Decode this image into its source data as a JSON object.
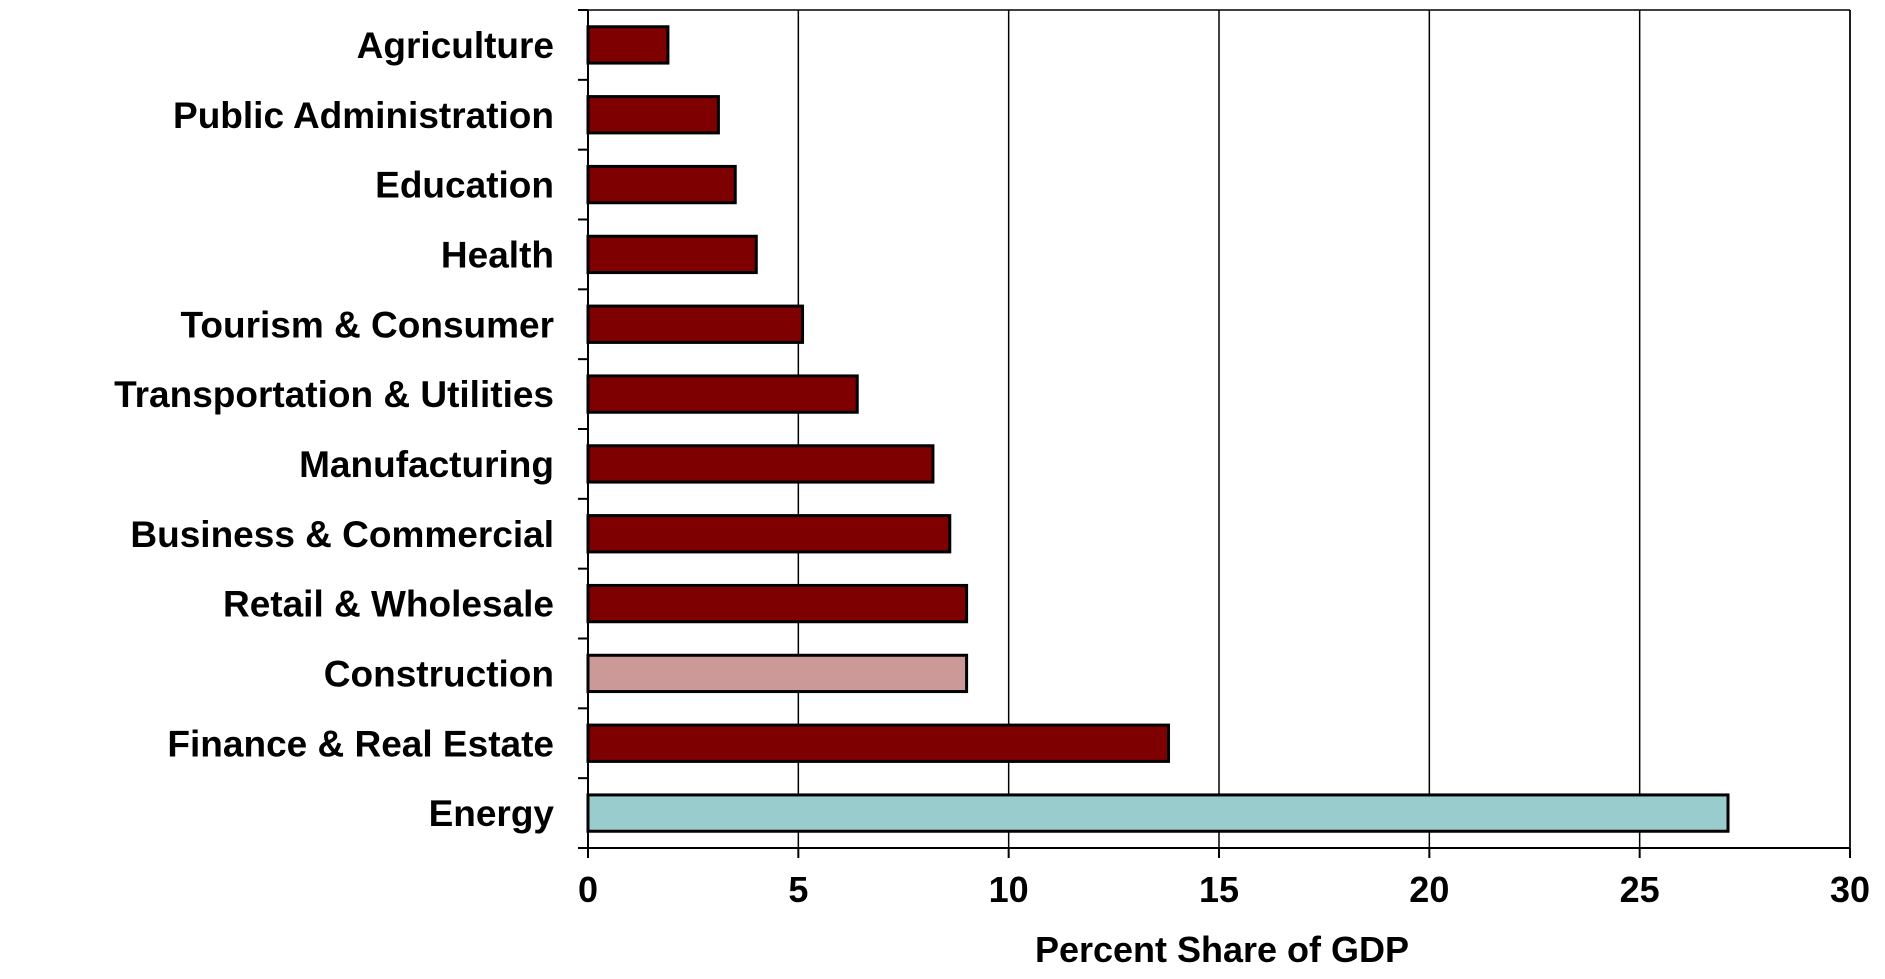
{
  "chart_data": {
    "type": "bar",
    "orientation": "horizontal",
    "title": "",
    "xlabel": "Percent Share of GDP",
    "ylabel": "",
    "xlim": [
      0,
      30
    ],
    "xticks": [
      "0",
      "5",
      "10",
      "15",
      "20",
      "25",
      "30"
    ],
    "grid": "vertical",
    "legend": "none",
    "categories": [
      "Agriculture",
      "Public Administration",
      "Education",
      "Health",
      "Tourism & Consumer",
      "Transportation & Utilities",
      "Manufacturing",
      "Business & Commercial",
      "Retail & Wholesale",
      "Construction",
      "Finance & Real Estate",
      "Energy"
    ],
    "values": [
      1.9,
      3.1,
      3.5,
      4.0,
      5.1,
      6.4,
      8.2,
      8.6,
      9.0,
      9.0,
      13.8,
      27.1
    ],
    "colors": {
      "default": "#7f0000",
      "Construction": "#cc9999",
      "Energy": "#99cccc",
      "outline": "#000000",
      "grid": "#000000"
    }
  }
}
